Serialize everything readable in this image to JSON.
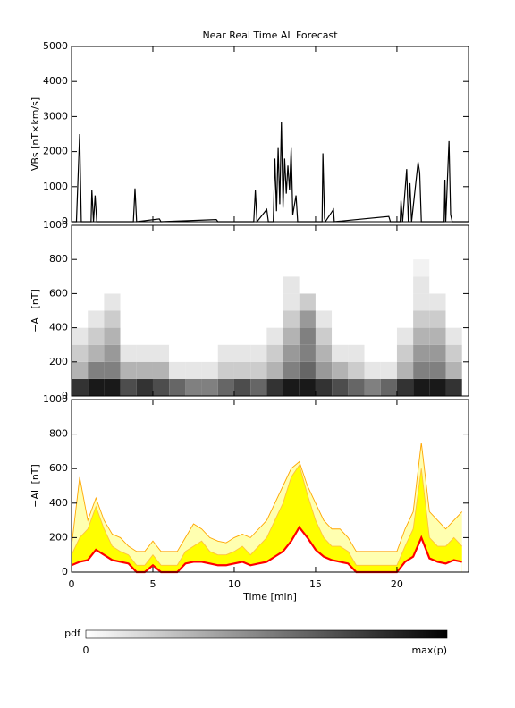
{
  "chart_data": [
    {
      "type": "line",
      "title": "Near Real Time AL Forecast",
      "ylabel": "VBs [nT×km/s]",
      "color": "#000000",
      "xlim": [
        0,
        24.4
      ],
      "ylim": [
        0,
        5000
      ],
      "yticks": [
        0,
        1000,
        2000,
        3000,
        4000,
        5000
      ],
      "x": [
        0,
        0.3,
        0.5,
        0.6,
        1.2,
        1.25,
        1.35,
        1.45,
        1.55,
        3.8,
        3.85,
        3.9,
        4.0,
        5.4,
        5.5,
        8.9,
        9.0,
        11.2,
        11.3,
        11.4,
        12.0,
        12.1,
        12.4,
        12.5,
        12.6,
        12.7,
        12.8,
        12.9,
        13.0,
        13.1,
        13.2,
        13.3,
        13.4,
        13.5,
        13.6,
        13.8,
        13.9,
        15.4,
        15.45,
        15.55,
        15.6,
        16.1,
        16.15,
        19.5,
        19.6,
        20.2,
        20.25,
        20.35,
        20.6,
        20.7,
        20.8,
        20.9,
        21.3,
        21.4,
        21.5,
        22.9,
        22.95,
        23.0,
        23.2,
        23.3,
        23.4,
        24.4
      ],
      "values": [
        0,
        0,
        2500,
        0,
        0,
        900,
        0,
        750,
        0,
        0,
        450,
        950,
        0,
        80,
        0,
        60,
        0,
        0,
        900,
        0,
        350,
        0,
        0,
        1800,
        300,
        2100,
        500,
        2850,
        400,
        1800,
        800,
        1600,
        900,
        2100,
        200,
        750,
        0,
        0,
        1950,
        100,
        0,
        350,
        0,
        150,
        0,
        0,
        600,
        0,
        1500,
        0,
        1100,
        0,
        1700,
        1400,
        0,
        0,
        1200,
        0,
        2300,
        200,
        0,
        0
      ]
    },
    {
      "type": "heatmap",
      "ylabel": "−AL [nT]",
      "xlim": [
        0,
        24.4
      ],
      "ylim": [
        0,
        1000
      ],
      "yticks": [
        0,
        200,
        400,
        600,
        800,
        1000
      ],
      "x_bins": [
        0,
        1,
        2,
        3,
        4,
        5,
        6,
        7,
        8,
        9,
        10,
        11,
        12,
        13,
        14,
        15,
        16,
        17,
        18,
        19,
        20,
        21,
        22,
        23,
        24
      ],
      "y_bins": [
        0,
        100,
        200,
        300,
        400,
        500,
        600,
        700,
        800
      ],
      "z": [
        [
          0.8,
          0.9,
          0.9,
          0.7,
          0.8,
          0.7,
          0.6,
          0.5,
          0.5,
          0.6,
          0.7,
          0.6,
          0.8,
          0.9,
          0.9,
          0.8,
          0.7,
          0.6,
          0.5,
          0.6,
          0.8,
          0.9,
          0.9,
          0.8
        ],
        [
          0.3,
          0.5,
          0.5,
          0.3,
          0.3,
          0.3,
          0.1,
          0.1,
          0.1,
          0.2,
          0.2,
          0.2,
          0.3,
          0.5,
          0.6,
          0.4,
          0.3,
          0.2,
          0.1,
          0.1,
          0.3,
          0.5,
          0.5,
          0.3
        ],
        [
          0.2,
          0.3,
          0.4,
          0.1,
          0.1,
          0.1,
          0,
          0,
          0,
          0.1,
          0.1,
          0.1,
          0.2,
          0.4,
          0.5,
          0.3,
          0.1,
          0.1,
          0,
          0,
          0.2,
          0.4,
          0.4,
          0.2
        ],
        [
          0.1,
          0.2,
          0.3,
          0,
          0,
          0,
          0,
          0,
          0,
          0,
          0,
          0,
          0.1,
          0.3,
          0.5,
          0.2,
          0,
          0,
          0,
          0,
          0.1,
          0.3,
          0.3,
          0.1
        ],
        [
          0,
          0.1,
          0.2,
          0,
          0,
          0,
          0,
          0,
          0,
          0,
          0,
          0,
          0,
          0.2,
          0.4,
          0.1,
          0,
          0,
          0,
          0,
          0,
          0.2,
          0.2,
          0
        ],
        [
          0,
          0,
          0.1,
          0,
          0,
          0,
          0,
          0,
          0,
          0,
          0,
          0,
          0,
          0.1,
          0.2,
          0,
          0,
          0,
          0,
          0,
          0,
          0.1,
          0.1,
          0
        ],
        [
          0,
          0,
          0,
          0,
          0,
          0,
          0,
          0,
          0,
          0,
          0,
          0,
          0,
          0.1,
          0,
          0,
          0,
          0,
          0,
          0,
          0,
          0.1,
          0,
          0
        ],
        [
          0,
          0,
          0,
          0,
          0,
          0,
          0,
          0,
          0,
          0,
          0,
          0,
          0,
          0,
          0,
          0,
          0,
          0,
          0,
          0,
          0,
          0.05,
          0,
          0
        ]
      ],
      "colorbar": {
        "label": "pdf",
        "min_label": "0",
        "max_label": "max(p)"
      }
    },
    {
      "type": "area",
      "ylabel": "−AL [nT]",
      "xlabel": "Time [min]",
      "xlim": [
        0,
        24.4
      ],
      "xticks": [
        0,
        5,
        10,
        15,
        20
      ],
      "ylim": [
        0,
        1000
      ],
      "yticks": [
        0,
        200,
        400,
        600,
        800,
        1000
      ],
      "x": [
        0,
        0.5,
        1,
        1.5,
        2,
        2.5,
        3,
        3.5,
        4,
        4.5,
        5,
        5.5,
        6,
        6.5,
        7,
        7.5,
        8,
        8.5,
        9,
        9.5,
        10,
        10.5,
        11,
        11.5,
        12,
        12.5,
        13,
        13.5,
        14,
        14.5,
        15,
        15.5,
        16,
        16.5,
        17,
        17.5,
        18,
        18.5,
        19,
        19.5,
        20,
        20.5,
        21,
        21.5,
        22,
        22.5,
        23,
        23.5,
        24
      ],
      "series": [
        {
          "color": "#ffa500",
          "fill": "#ffffb0",
          "values": [
            150,
            550,
            300,
            430,
            300,
            220,
            200,
            150,
            120,
            120,
            180,
            120,
            120,
            120,
            200,
            280,
            250,
            200,
            180,
            170,
            200,
            220,
            200,
            250,
            300,
            400,
            500,
            600,
            640,
            500,
            400,
            300,
            250,
            250,
            200,
            120,
            120,
            120,
            120,
            120,
            120,
            250,
            350,
            750,
            350,
            300,
            250,
            300,
            350
          ]
        },
        {
          "color": "#ffc040",
          "fill": "#ffff00",
          "values": [
            100,
            200,
            250,
            380,
            250,
            150,
            120,
            100,
            40,
            40,
            100,
            40,
            40,
            40,
            120,
            150,
            180,
            120,
            100,
            100,
            120,
            150,
            100,
            150,
            200,
            300,
            400,
            550,
            620,
            450,
            300,
            200,
            150,
            150,
            120,
            40,
            40,
            40,
            40,
            40,
            40,
            150,
            250,
            600,
            200,
            150,
            150,
            200,
            150
          ]
        },
        {
          "color": "#ff0000",
          "fill": "#ffffff",
          "values": [
            40,
            60,
            70,
            130,
            100,
            70,
            60,
            50,
            0,
            0,
            40,
            0,
            0,
            0,
            50,
            60,
            60,
            50,
            40,
            40,
            50,
            60,
            40,
            50,
            60,
            90,
            120,
            180,
            260,
            200,
            130,
            90,
            70,
            60,
            50,
            0,
            0,
            0,
            0,
            0,
            0,
            60,
            90,
            200,
            80,
            60,
            50,
            70,
            60
          ]
        }
      ]
    }
  ]
}
